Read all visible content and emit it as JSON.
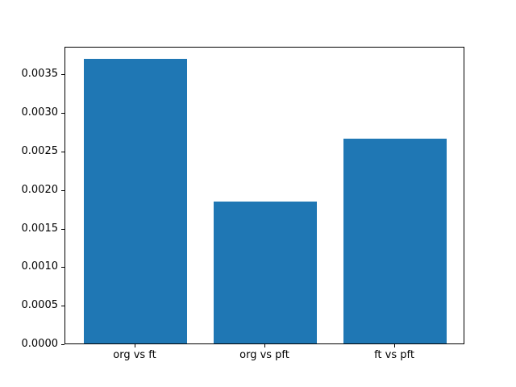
{
  "figure": {
    "background": "#ffffff",
    "frame_color": "#000000",
    "text_color": "#000000"
  },
  "chart_data": {
    "type": "bar",
    "title": "",
    "xlabel": "",
    "ylabel": "",
    "categories": [
      "org vs ft",
      "org vs pft",
      "ft vs pft"
    ],
    "values": [
      0.00369,
      0.00184,
      0.00266
    ],
    "bar_color": "#1f77b4",
    "bar_width": 0.8,
    "xlim": [
      -0.54,
      2.54
    ],
    "ylim": [
      0,
      0.00386
    ],
    "yticks": [
      0.0,
      0.0005,
      0.001,
      0.0015,
      0.002,
      0.0025,
      0.003,
      0.0035
    ],
    "ytick_labels": [
      "0.0000",
      "0.0005",
      "0.0010",
      "0.0015",
      "0.0020",
      "0.0025",
      "0.0030",
      "0.0035"
    ],
    "grid": false,
    "legend": null
  }
}
